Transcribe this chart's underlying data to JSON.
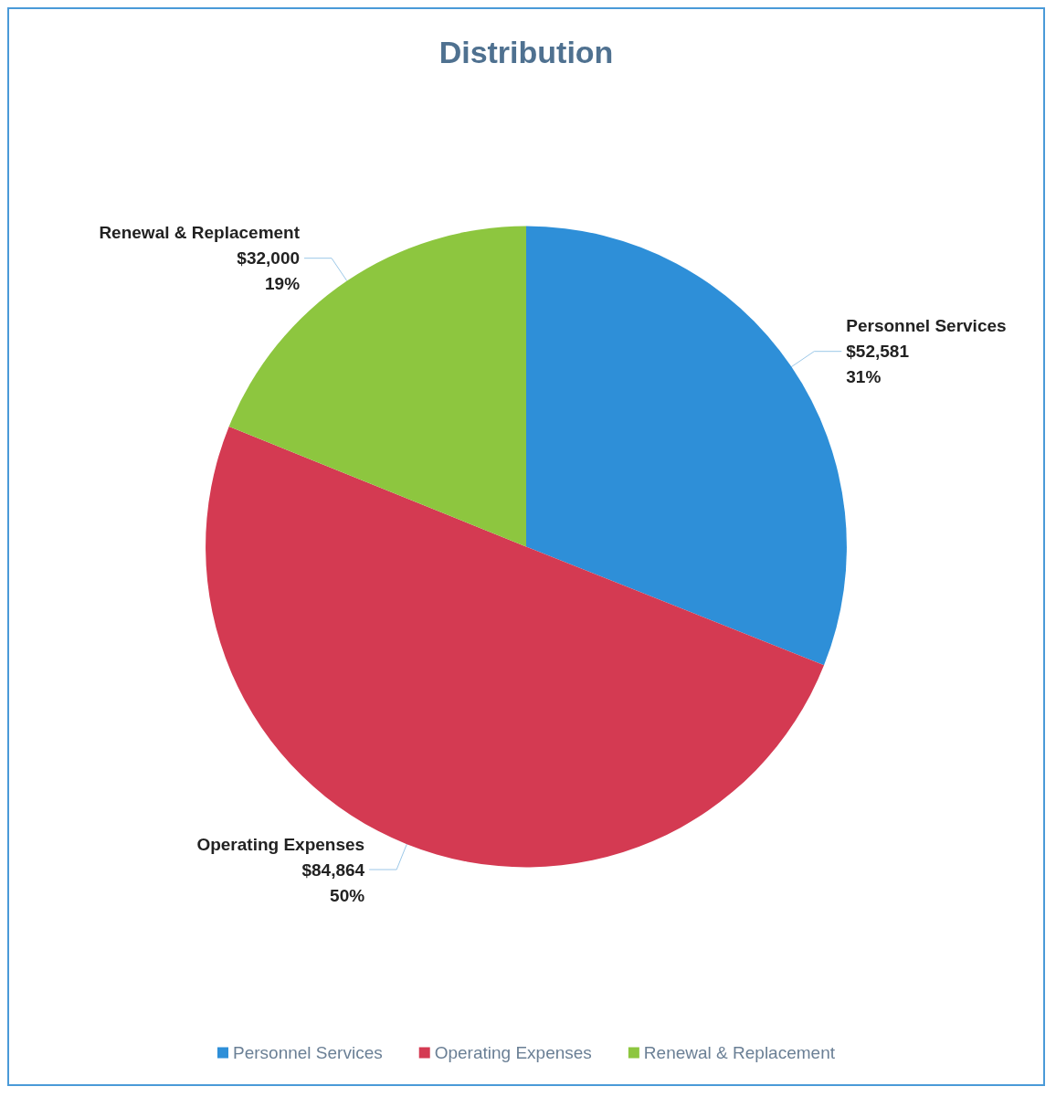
{
  "chart_data": {
    "type": "pie",
    "title": "Distribution",
    "categories": [
      "Personnel Services",
      "Operating Expenses",
      "Renewal & Replacement"
    ],
    "values": [
      52581,
      84864,
      32000
    ],
    "colors": [
      "#2e8fd8",
      "#d43a52",
      "#8dc63f"
    ],
    "value_labels": [
      "$52,581\n31%",
      "$84,864\n50%",
      "$32,000\n19%"
    ],
    "legend": "bottom"
  }
}
